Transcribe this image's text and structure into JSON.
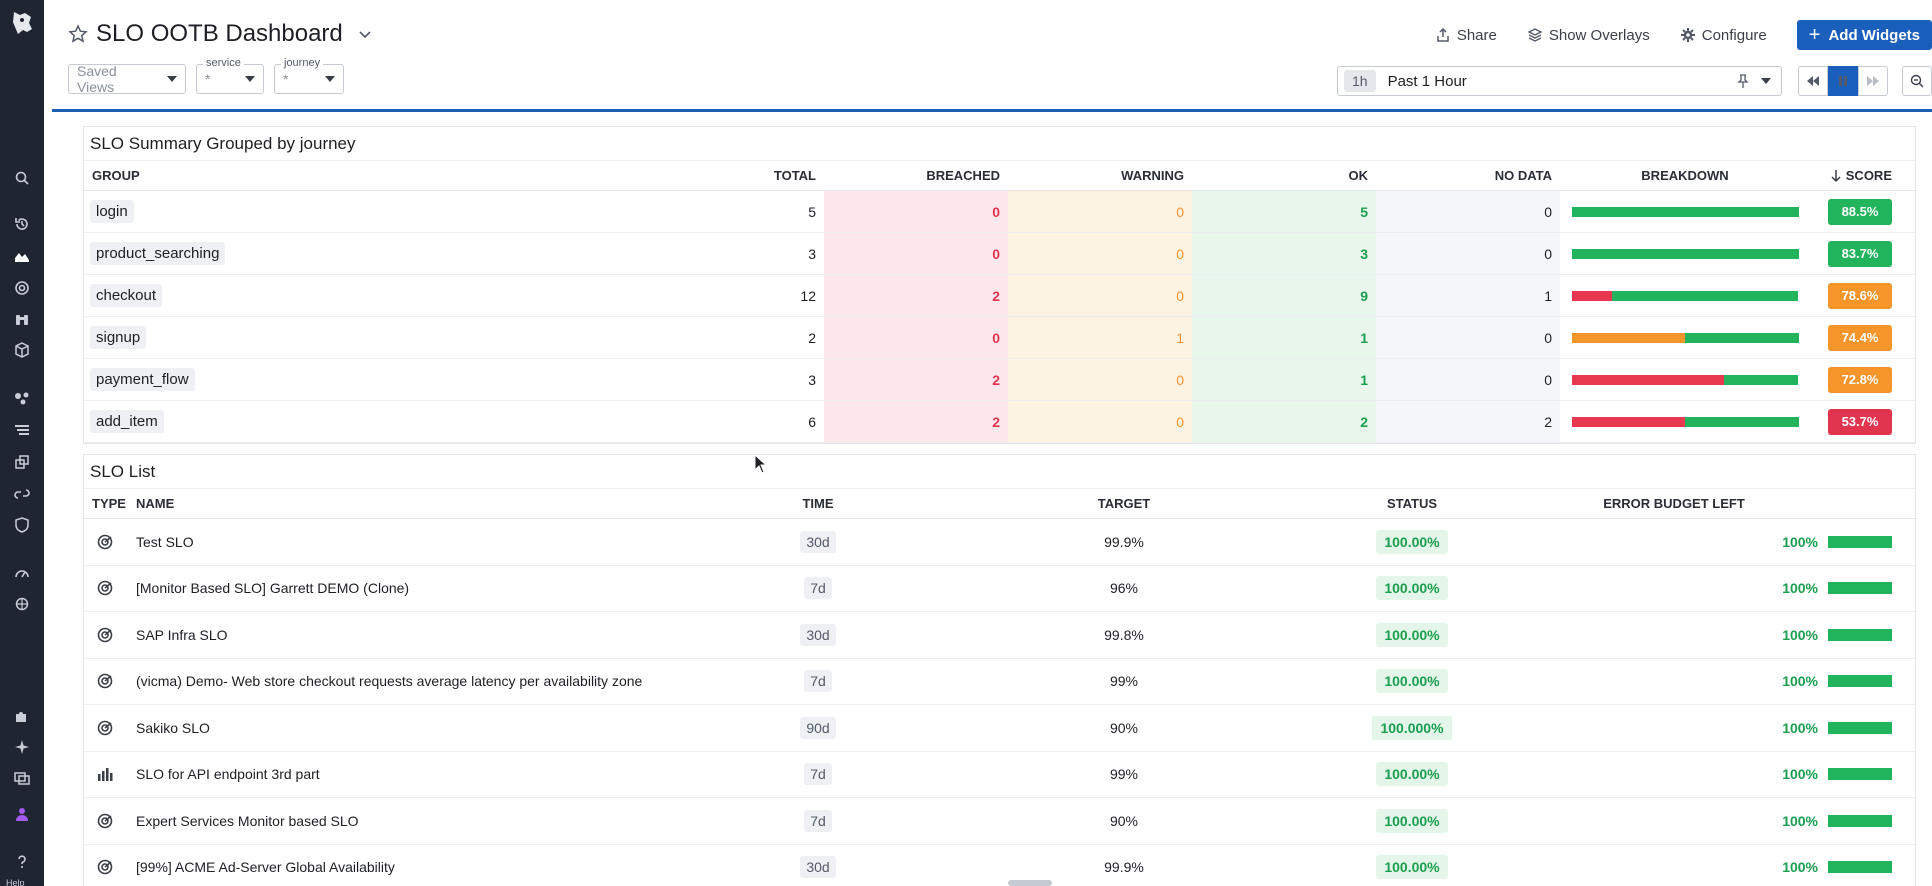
{
  "header": {
    "title": "SLO OOTB Dashboard",
    "actions": [
      "Share",
      "Show Overlays",
      "Configure"
    ],
    "add_widgets": "Add Widgets"
  },
  "filters": {
    "saved_views": "Saved Views",
    "service": {
      "label": "service",
      "value": "*"
    },
    "journey": {
      "label": "journey",
      "value": "*"
    }
  },
  "time": {
    "pill": "1h",
    "range": "Past 1 Hour"
  },
  "summary": {
    "title": "SLO Summary Grouped by journey",
    "columns": [
      "GROUP",
      "TOTAL",
      "BREACHED",
      "WARNING",
      "OK",
      "NO DATA",
      "BREAKDOWN",
      "SCORE"
    ],
    "rows": [
      {
        "group": "login",
        "total": "5",
        "breached": "0",
        "warning": "0",
        "ok": "5",
        "nodata": "0",
        "breakdown": [
          0,
          0,
          1
        ],
        "score": "88.5%",
        "score_color": "#22b35d"
      },
      {
        "group": "product_searching",
        "total": "3",
        "breached": "0",
        "warning": "0",
        "ok": "3",
        "nodata": "0",
        "breakdown": [
          0,
          0,
          1
        ],
        "score": "83.7%",
        "score_color": "#22b35d"
      },
      {
        "group": "checkout",
        "total": "12",
        "breached": "2",
        "warning": "0",
        "ok": "9",
        "nodata": "1",
        "breakdown": [
          0.18,
          0,
          0.82
        ],
        "score": "78.6%",
        "score_color": "#f5952a"
      },
      {
        "group": "signup",
        "total": "2",
        "breached": "0",
        "warning": "1",
        "ok": "1",
        "nodata": "0",
        "breakdown": [
          0,
          0.5,
          0.5
        ],
        "score": "74.4%",
        "score_color": "#f5952a"
      },
      {
        "group": "payment_flow",
        "total": "3",
        "breached": "2",
        "warning": "0",
        "ok": "1",
        "nodata": "0",
        "breakdown": [
          0.67,
          0,
          0.33
        ],
        "score": "72.8%",
        "score_color": "#f5952a"
      },
      {
        "group": "add_item",
        "total": "6",
        "breached": "2",
        "warning": "0",
        "ok": "2",
        "nodata": "2",
        "breakdown": [
          0.5,
          0,
          0.5
        ],
        "score": "53.7%",
        "score_color": "#e0344f"
      }
    ]
  },
  "slo_list": {
    "title": "SLO List",
    "columns": [
      "TYPE",
      "NAME",
      "TIME",
      "TARGET",
      "STATUS",
      "ERROR BUDGET LEFT"
    ],
    "rows": [
      {
        "type": "monitor",
        "name": "Test SLO",
        "time": "30d",
        "target": "99.9%",
        "status": "100.00%",
        "budget": "100%",
        "budget_frac": 1
      },
      {
        "type": "monitor",
        "name": "[Monitor Based SLO] Garrett DEMO (Clone)",
        "time": "7d",
        "target": "96%",
        "status": "100.00%",
        "budget": "100%",
        "budget_frac": 1
      },
      {
        "type": "monitor",
        "name": "SAP Infra SLO",
        "time": "30d",
        "target": "99.8%",
        "status": "100.00%",
        "budget": "100%",
        "budget_frac": 1
      },
      {
        "type": "monitor",
        "name": "(vicma) Demo- Web store checkout requests average latency per availability zone",
        "time": "7d",
        "target": "99%",
        "status": "100.00%",
        "budget": "100%",
        "budget_frac": 1
      },
      {
        "type": "monitor",
        "name": "Sakiko SLO",
        "time": "90d",
        "target": "90%",
        "status": "100.000%",
        "budget": "100%",
        "budget_frac": 1
      },
      {
        "type": "metric",
        "name": "SLO for API endpoint 3rd part",
        "time": "7d",
        "target": "99%",
        "status": "100.00%",
        "budget": "100%",
        "budget_frac": 1
      },
      {
        "type": "monitor",
        "name": "Expert Services Monitor based SLO",
        "time": "7d",
        "target": "90%",
        "status": "100.00%",
        "budget": "100%",
        "budget_frac": 1
      },
      {
        "type": "monitor",
        "name": "[99%] ACME Ad-Server Global Availability",
        "time": "30d",
        "target": "99.9%",
        "status": "100.00%",
        "budget": "100%",
        "budget_frac": 1
      }
    ]
  },
  "nav": {
    "help": "Help"
  },
  "colors": {
    "breached": "#e8384f",
    "warning": "#f5952a",
    "ok": "#22b35d"
  }
}
